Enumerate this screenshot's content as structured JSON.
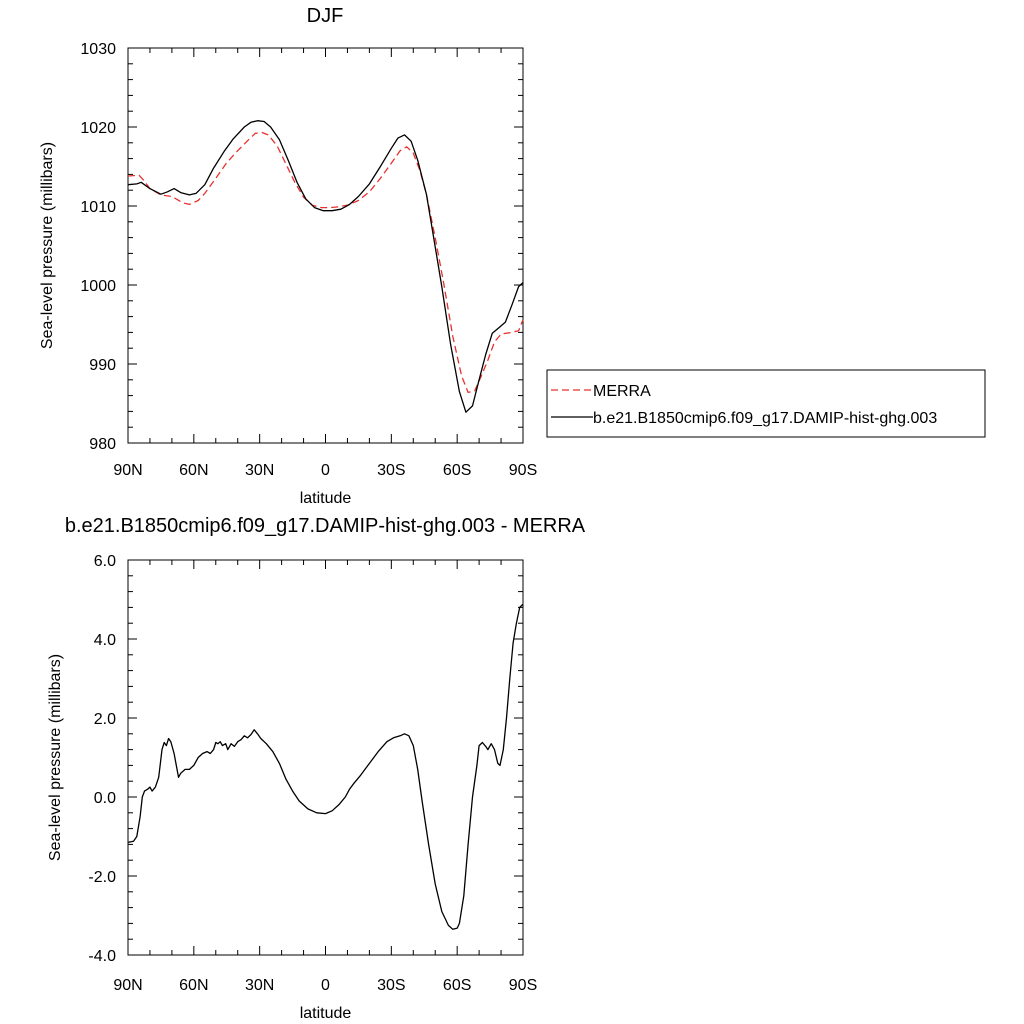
{
  "chart_data": [
    {
      "type": "line",
      "title": "DJF",
      "xlabel": "latitude",
      "ylabel": "Sea-level pressure (millibars)",
      "xlim": [
        90,
        -90
      ],
      "ylim": [
        980,
        1030
      ],
      "x_tick_values": [
        90,
        60,
        30,
        0,
        -30,
        -60,
        -90
      ],
      "x_tick_labels": [
        "90N",
        "60N",
        "30N",
        "0",
        "30S",
        "60S",
        "90S"
      ],
      "y_tick_values": [
        980,
        990,
        1000,
        1010,
        1020,
        1030
      ],
      "y_tick_labels": [
        "980",
        "990",
        "1000",
        "1010",
        "1020",
        "1030"
      ],
      "grid": false,
      "legend_position": "right",
      "series": [
        {
          "name": "MERRA",
          "color": "#e8312f",
          "dash": "dashed",
          "points": [
            [
              90,
              1013.8
            ],
            [
              85,
              1013.9
            ],
            [
              83,
              1013.3
            ],
            [
              80,
              1012.2
            ],
            [
              75,
              1011.4
            ],
            [
              70,
              1011.2
            ],
            [
              65,
              1010.4
            ],
            [
              62,
              1010.2
            ],
            [
              58,
              1010.7
            ],
            [
              55,
              1011.6
            ],
            [
              50,
              1013.5
            ],
            [
              45,
              1015.5
            ],
            [
              40,
              1017.0
            ],
            [
              35,
              1018.4
            ],
            [
              32,
              1019.2
            ],
            [
              29,
              1019.3
            ],
            [
              26,
              1019.0
            ],
            [
              22,
              1017.6
            ],
            [
              18,
              1015.3
            ],
            [
              14,
              1013.0
            ],
            [
              10,
              1011.1
            ],
            [
              6,
              1010.1
            ],
            [
              2,
              1009.8
            ],
            [
              -2,
              1009.8
            ],
            [
              -6,
              1009.9
            ],
            [
              -10,
              1010.1
            ],
            [
              -15,
              1010.7
            ],
            [
              -20,
              1011.8
            ],
            [
              -25,
              1013.5
            ],
            [
              -30,
              1015.4
            ],
            [
              -34,
              1017.0
            ],
            [
              -37,
              1017.5
            ],
            [
              -40,
              1016.7
            ],
            [
              -43,
              1014.5
            ],
            [
              -46,
              1011.5
            ],
            [
              -50,
              1006.0
            ],
            [
              -54,
              1000.0
            ],
            [
              -58,
              993.5
            ],
            [
              -62,
              988.5
            ],
            [
              -65,
              986.4
            ],
            [
              -68,
              986.6
            ],
            [
              -71,
              988.5
            ],
            [
              -74,
              990.5
            ],
            [
              -77,
              992.8
            ],
            [
              -80,
              993.8
            ],
            [
              -85,
              994.0
            ],
            [
              -88,
              994.2
            ],
            [
              -90,
              995.6
            ]
          ]
        },
        {
          "name": "b.e21.B1850cmip6.f09_g17.DAMIP-hist-ghg.003",
          "color": "#000000",
          "dash": "solid",
          "points": [
            [
              90,
              1012.7
            ],
            [
              86,
              1012.8
            ],
            [
              84,
              1013.0
            ],
            [
              80,
              1012.2
            ],
            [
              75,
              1011.5
            ],
            [
              72,
              1011.8
            ],
            [
              69,
              1012.2
            ],
            [
              66,
              1011.7
            ],
            [
              62,
              1011.4
            ],
            [
              59,
              1011.6
            ],
            [
              55,
              1012.7
            ],
            [
              51,
              1014.8
            ],
            [
              46,
              1017.0
            ],
            [
              42,
              1018.5
            ],
            [
              37,
              1020.0
            ],
            [
              34,
              1020.6
            ],
            [
              31,
              1020.8
            ],
            [
              28,
              1020.7
            ],
            [
              25,
              1020.0
            ],
            [
              21,
              1018.4
            ],
            [
              17,
              1015.8
            ],
            [
              13,
              1013.0
            ],
            [
              9,
              1010.9
            ],
            [
              5,
              1009.8
            ],
            [
              1,
              1009.4
            ],
            [
              -3,
              1009.4
            ],
            [
              -7,
              1009.6
            ],
            [
              -11,
              1010.2
            ],
            [
              -15,
              1011.2
            ],
            [
              -20,
              1012.8
            ],
            [
              -25,
              1015.0
            ],
            [
              -30,
              1017.3
            ],
            [
              -33,
              1018.6
            ],
            [
              -36,
              1019.0
            ],
            [
              -39,
              1018.2
            ],
            [
              -42,
              1015.8
            ],
            [
              -46,
              1011.5
            ],
            [
              -49,
              1006.5
            ],
            [
              -53,
              999.8
            ],
            [
              -57,
              992.5
            ],
            [
              -61,
              986.5
            ],
            [
              -64,
              983.9
            ],
            [
              -67,
              984.7
            ],
            [
              -70,
              988.0
            ],
            [
              -73,
              991.2
            ],
            [
              -76,
              993.9
            ],
            [
              -79,
              994.6
            ],
            [
              -82,
              995.3
            ],
            [
              -85,
              997.5
            ],
            [
              -88,
              999.8
            ],
            [
              -90,
              1000.3
            ]
          ]
        }
      ]
    },
    {
      "type": "line",
      "title": "b.e21.B1850cmip6.f09_g17.DAMIP-hist-ghg.003 - MERRA",
      "xlabel": "latitude",
      "ylabel": "Sea-level pressure (millibars)",
      "xlim": [
        90,
        -90
      ],
      "ylim": [
        -4,
        6
      ],
      "x_tick_values": [
        90,
        60,
        30,
        0,
        -30,
        -60,
        -90
      ],
      "x_tick_labels": [
        "90N",
        "60N",
        "30N",
        "0",
        "30S",
        "60S",
        "90S"
      ],
      "y_tick_values": [
        -4,
        -2,
        0,
        2,
        4,
        6
      ],
      "y_tick_labels": [
        "-4.0",
        "-2.0",
        "0.0",
        "2.0",
        "4.0",
        "6.0"
      ],
      "grid": false,
      "series": [
        {
          "color": "#000000",
          "dash": "solid",
          "points": [
            [
              90,
              -1.15
            ],
            [
              87.5,
              -1.12
            ],
            [
              86,
              -1.0
            ],
            [
              84.5,
              -0.5
            ],
            [
              83.5,
              0.0
            ],
            [
              82.5,
              0.15
            ],
            [
              81,
              0.2
            ],
            [
              80,
              0.25
            ],
            [
              79,
              0.15
            ],
            [
              77.5,
              0.25
            ],
            [
              76,
              0.5
            ],
            [
              74.5,
              1.2
            ],
            [
              73.5,
              1.38
            ],
            [
              72.5,
              1.3
            ],
            [
              71.5,
              1.48
            ],
            [
              70.5,
              1.4
            ],
            [
              69,
              1.1
            ],
            [
              68,
              0.8
            ],
            [
              67,
              0.5
            ],
            [
              66,
              0.6
            ],
            [
              64,
              0.7
            ],
            [
              62,
              0.7
            ],
            [
              60,
              0.8
            ],
            [
              58,
              1.0
            ],
            [
              56,
              1.1
            ],
            [
              54,
              1.15
            ],
            [
              52.5,
              1.1
            ],
            [
              51,
              1.2
            ],
            [
              50,
              1.38
            ],
            [
              49,
              1.35
            ],
            [
              48,
              1.4
            ],
            [
              47,
              1.3
            ],
            [
              45.5,
              1.35
            ],
            [
              44.5,
              1.2
            ],
            [
              43,
              1.35
            ],
            [
              41.5,
              1.28
            ],
            [
              40,
              1.4
            ],
            [
              38.5,
              1.45
            ],
            [
              37,
              1.55
            ],
            [
              35.5,
              1.5
            ],
            [
              34,
              1.58
            ],
            [
              32.5,
              1.7
            ],
            [
              31,
              1.6
            ],
            [
              29.5,
              1.48
            ],
            [
              27,
              1.35
            ],
            [
              24,
              1.15
            ],
            [
              21,
              0.85
            ],
            [
              18,
              0.45
            ],
            [
              15,
              0.15
            ],
            [
              12,
              -0.1
            ],
            [
              8,
              -0.3
            ],
            [
              4,
              -0.4
            ],
            [
              0,
              -0.42
            ],
            [
              -3,
              -0.35
            ],
            [
              -6,
              -0.2
            ],
            [
              -9,
              0.0
            ],
            [
              -11,
              0.2
            ],
            [
              -13,
              0.35
            ],
            [
              -16,
              0.55
            ],
            [
              -20,
              0.85
            ],
            [
              -24,
              1.15
            ],
            [
              -28,
              1.4
            ],
            [
              -31,
              1.5
            ],
            [
              -34,
              1.55
            ],
            [
              -36,
              1.6
            ],
            [
              -38,
              1.55
            ],
            [
              -40,
              1.3
            ],
            [
              -42,
              0.7
            ],
            [
              -44,
              -0.1
            ],
            [
              -47,
              -1.2
            ],
            [
              -50,
              -2.2
            ],
            [
              -53,
              -2.9
            ],
            [
              -56,
              -3.25
            ],
            [
              -58,
              -3.35
            ],
            [
              -60,
              -3.32
            ],
            [
              -61,
              -3.2
            ],
            [
              -63,
              -2.5
            ],
            [
              -65,
              -1.2
            ],
            [
              -67,
              0.0
            ],
            [
              -69,
              0.8
            ],
            [
              -70,
              1.3
            ],
            [
              -71.5,
              1.38
            ],
            [
              -73,
              1.28
            ],
            [
              -74,
              1.2
            ],
            [
              -75.5,
              1.35
            ],
            [
              -77,
              1.2
            ],
            [
              -78.5,
              0.85
            ],
            [
              -79.5,
              0.8
            ],
            [
              -81,
              1.2
            ],
            [
              -82.5,
              2.0
            ],
            [
              -84,
              3.0
            ],
            [
              -85.5,
              3.9
            ],
            [
              -87,
              4.4
            ],
            [
              -88.5,
              4.8
            ],
            [
              -90,
              4.88
            ]
          ]
        }
      ]
    }
  ]
}
